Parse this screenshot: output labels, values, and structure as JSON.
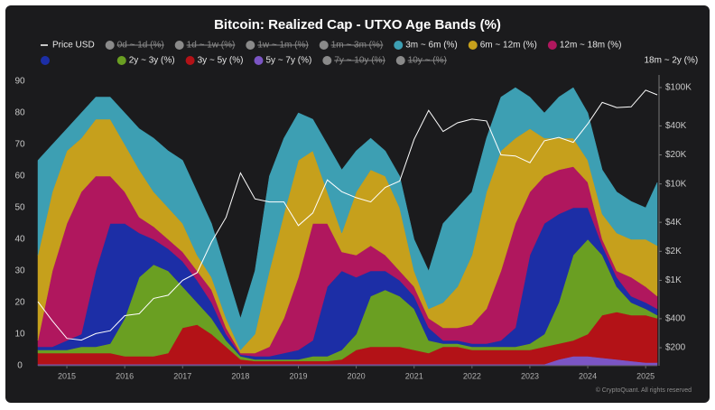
{
  "chart_data": {
    "type": "area",
    "stacked": true,
    "title": "Bitcoin: Realized Cap - UTXO Age Bands (%)",
    "footer": "© CryptoQuant. All rights reserved",
    "x": [
      2014.5,
      2014.75,
      2015.0,
      2015.25,
      2015.5,
      2015.75,
      2016.0,
      2016.25,
      2016.5,
      2016.75,
      2017.0,
      2017.25,
      2017.5,
      2017.75,
      2018.0,
      2018.25,
      2018.5,
      2018.75,
      2019.0,
      2019.25,
      2019.5,
      2019.75,
      2020.0,
      2020.25,
      2020.5,
      2020.75,
      2021.0,
      2021.25,
      2021.5,
      2021.75,
      2022.0,
      2022.25,
      2022.5,
      2022.75,
      2023.0,
      2023.25,
      2023.5,
      2023.75,
      2024.0,
      2024.25,
      2024.5,
      2024.75,
      2025.0,
      2025.2
    ],
    "xlim": [
      2014.5,
      2025.2
    ],
    "xticks": [
      2015,
      2016,
      2017,
      2018,
      2019,
      2020,
      2021,
      2022,
      2023,
      2024,
      2025
    ],
    "ylim": [
      0,
      92
    ],
    "yticks": [
      0,
      10,
      20,
      30,
      40,
      50,
      60,
      70,
      80,
      90
    ],
    "y2lim": [
      130,
      135000
    ],
    "y2_log": true,
    "y2ticks": [
      {
        "value": 100000,
        "label": "$100K"
      },
      {
        "value": 40000,
        "label": "$40K"
      },
      {
        "value": 20000,
        "label": "$20K"
      },
      {
        "value": 10000,
        "label": "$10K"
      },
      {
        "value": 4000,
        "label": "$4K"
      },
      {
        "value": 2000,
        "label": "$2K"
      },
      {
        "value": 1000,
        "label": "$1K"
      },
      {
        "value": 400,
        "label": "$400"
      },
      {
        "value": 200,
        "label": "$200"
      }
    ],
    "grid": false,
    "series": [
      {
        "name": "Price USD",
        "type": "line",
        "axis": "y2",
        "color": "#ffffff",
        "values": [
          600,
          380,
          250,
          240,
          280,
          300,
          430,
          450,
          650,
          700,
          1000,
          1200,
          2500,
          4500,
          13000,
          7000,
          6500,
          6500,
          3700,
          5000,
          11000,
          8300,
          7200,
          6500,
          9200,
          10700,
          29000,
          58000,
          35000,
          43000,
          47000,
          45000,
          20000,
          19500,
          16600,
          28000,
          30400,
          27000,
          42000,
          70000,
          62000,
          63000,
          94000,
          84000
        ]
      },
      {
        "name": "0d ~ 1d (%)",
        "color": "#8a8a8a",
        "hidden": true
      },
      {
        "name": "1d ~ 1w (%)",
        "color": "#8a8a8a",
        "hidden": true
      },
      {
        "name": "1w ~ 1m (%)",
        "color": "#8a8a8a",
        "hidden": true
      },
      {
        "name": "1m ~ 3m (%)",
        "color": "#8a8a8a",
        "hidden": true
      },
      {
        "name": "3m ~ 6m (%)",
        "color": "#3d9fb3",
        "values": [
          30,
          15,
          7,
          8,
          7,
          7,
          10,
          13,
          17,
          18,
          20,
          20,
          17,
          15,
          10,
          20,
          30,
          24,
          15,
          10,
          15,
          20,
          13,
          10,
          8,
          10,
          10,
          12,
          25,
          25,
          20,
          17,
          17,
          16,
          10,
          8,
          13,
          16,
          15,
          14,
          13,
          12,
          10,
          20
        ]
      },
      {
        "name": "6m ~ 12m (%)",
        "color": "#c6a01c",
        "values": [
          27,
          25,
          23,
          17,
          18,
          18,
          15,
          15,
          11,
          10,
          9,
          5,
          4,
          3,
          1,
          6,
          24,
          33,
          37,
          23,
          10,
          6,
          20,
          24,
          25,
          20,
          5,
          3,
          8,
          13,
          22,
          37,
          38,
          27,
          20,
          12,
          10,
          9,
          7,
          8,
          12,
          12,
          15,
          16
        ]
      },
      {
        "name": "12m ~ 18m (%)",
        "color": "#b0175e",
        "values": [
          2,
          24,
          37,
          45,
          30,
          15,
          10,
          5,
          4,
          3,
          3,
          3,
          4,
          2,
          0.5,
          1,
          3,
          11,
          23,
          37,
          20,
          6,
          7,
          8,
          5,
          3,
          3,
          3,
          4,
          4,
          6,
          11,
          22,
          33,
          20,
          15,
          14,
          13,
          8,
          2,
          2,
          6,
          5,
          4
        ]
      },
      {
        "name": "18m ~ 2y (%)",
        "color": "#1c2ea6",
        "values": [
          1,
          1,
          3,
          4,
          24,
          38,
          30,
          14,
          8,
          7,
          8,
          7,
          5,
          2,
          0.5,
          1,
          1,
          2,
          3,
          5,
          22,
          25,
          18,
          8,
          6,
          5,
          4,
          4,
          1,
          1,
          1,
          1,
          2,
          6,
          28,
          35,
          28,
          15,
          10,
          3,
          3,
          2,
          2,
          2
        ]
      },
      {
        "name": "2y ~ 3y (%)",
        "color": "#6a9f22",
        "values": [
          1,
          1,
          1,
          2,
          2,
          3,
          12,
          25,
          29,
          26,
          13,
          7,
          5,
          2,
          1,
          0.5,
          0.5,
          0.5,
          0.5,
          1.5,
          1.5,
          3,
          5,
          16,
          18,
          16,
          13,
          4,
          1,
          1,
          1,
          1,
          1,
          1,
          2,
          4,
          13,
          27,
          30,
          19,
          8,
          4,
          2,
          1
        ]
      },
      {
        "name": "3y ~ 5y (%)",
        "color": "#b31217",
        "values": [
          3.5,
          3.5,
          3.5,
          3.5,
          3.5,
          3.5,
          2.5,
          2.5,
          2.5,
          3.5,
          11.5,
          12.5,
          9.5,
          5.5,
          1.5,
          1,
          1,
          1,
          1,
          1,
          1,
          1.5,
          4.5,
          5.5,
          5.5,
          5.5,
          4.5,
          3.5,
          5.5,
          5.5,
          4.5,
          4.5,
          4.5,
          4.5,
          4.5,
          5.5,
          5,
          5,
          7,
          13.5,
          15,
          14.5,
          15,
          14
        ]
      },
      {
        "name": "5y ~ 7y (%)",
        "color": "#7b55c4",
        "values": [
          0.5,
          0.5,
          0.5,
          0.5,
          0.5,
          0.5,
          0.5,
          0.5,
          0.5,
          0.5,
          0.5,
          0.5,
          0.5,
          0.5,
          0.5,
          0.5,
          0.5,
          0.5,
          0.5,
          0.5,
          0.5,
          0.5,
          0.5,
          0.5,
          0.5,
          0.5,
          0.5,
          0.5,
          0.5,
          0.5,
          0.5,
          0.5,
          0.5,
          0.5,
          0.5,
          0.5,
          2,
          3,
          3,
          2.5,
          2,
          1.5,
          1,
          1
        ]
      },
      {
        "name": "7y ~ 10y (%)",
        "color": "#8a8a8a",
        "hidden": true
      },
      {
        "name": "10y ~ (%)",
        "color": "#8a8a8a",
        "hidden": true
      }
    ]
  }
}
